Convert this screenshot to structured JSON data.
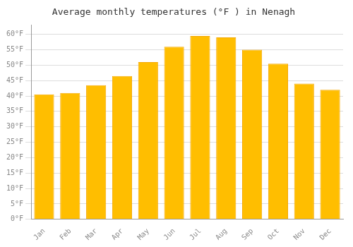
{
  "chart_data": {
    "type": "bar",
    "title": "Average monthly temperatures (°F ) in Nenagh",
    "categories": [
      "Jan",
      "Feb",
      "Mar",
      "Apr",
      "May",
      "Jun",
      "Jul",
      "Aug",
      "Sep",
      "Oct",
      "Nov",
      "Dec"
    ],
    "values": [
      40.5,
      41.0,
      43.5,
      46.5,
      51.0,
      56.0,
      59.5,
      59.0,
      55.0,
      50.5,
      44.0,
      42.0
    ],
    "color": "#FFBE00",
    "ylim": [
      0,
      63
    ],
    "yticks": [
      {
        "value": 0,
        "label": "0°F"
      },
      {
        "value": 5,
        "label": "5°F"
      },
      {
        "value": 10,
        "label": "10°F"
      },
      {
        "value": 15,
        "label": "15°F"
      },
      {
        "value": 20,
        "label": "20°F"
      },
      {
        "value": 25,
        "label": "25°F"
      },
      {
        "value": 30,
        "label": "30°F"
      },
      {
        "value": 35,
        "label": "35°F"
      },
      {
        "value": 40,
        "label": "40°F"
      },
      {
        "value": 45,
        "label": "45°F"
      },
      {
        "value": 50,
        "label": "50°F"
      },
      {
        "value": 55,
        "label": "55°F"
      },
      {
        "value": 60,
        "label": "60°F"
      }
    ],
    "grid": true
  }
}
